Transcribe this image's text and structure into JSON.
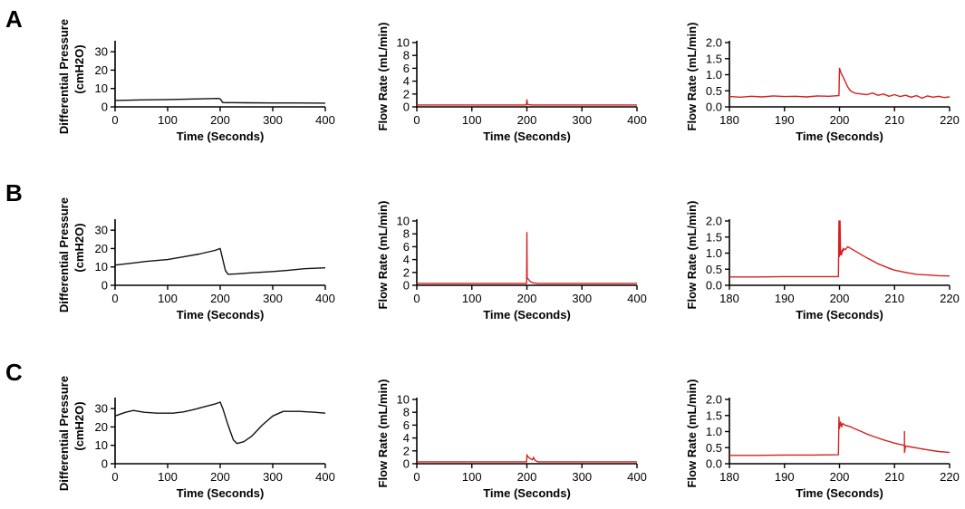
{
  "colors": {
    "pressure": "#111111",
    "flow": "#d42020"
  },
  "row_labels": [
    "A",
    "B",
    "C"
  ],
  "chart_data": [
    {
      "id": "A-pressure",
      "type": "line",
      "row": "A",
      "xlabel": "Time (Seconds)",
      "ylabel": [
        "Differential Pressure",
        "(cmH2O)"
      ],
      "xlim": [
        0,
        400
      ],
      "ylim": [
        0,
        35
      ],
      "xticks": [
        0,
        100,
        200,
        300,
        400
      ],
      "yticks": [
        0,
        10,
        20,
        30
      ],
      "color": "pressure",
      "series": [
        {
          "name": "Differential Pressure",
          "x": [
            0,
            50,
            100,
            150,
            195,
            200,
            205,
            250,
            300,
            350,
            400
          ],
          "y": [
            3.5,
            3.8,
            4.0,
            4.3,
            4.6,
            4.4,
            2.3,
            2.2,
            2.1,
            2.1,
            2.0
          ]
        }
      ]
    },
    {
      "id": "A-flow",
      "type": "line",
      "row": "A",
      "xlabel": "Time (Seconds)",
      "ylabel": [
        "Flow Rate (mL/min)"
      ],
      "xlim": [
        0,
        400
      ],
      "ylim": [
        0,
        10
      ],
      "xticks": [
        0,
        100,
        200,
        300,
        400
      ],
      "yticks": [
        0,
        2,
        4,
        6,
        8,
        10
      ],
      "color": "flow",
      "series": [
        {
          "name": "Flow Rate",
          "x": [
            0,
            100,
            198,
            199,
            200,
            201,
            203,
            210,
            300,
            400
          ],
          "y": [
            0.3,
            0.3,
            0.3,
            0.3,
            1.1,
            0.4,
            0.35,
            0.3,
            0.3,
            0.3
          ]
        }
      ]
    },
    {
      "id": "A-flow-zoom",
      "type": "line",
      "row": "A",
      "xlabel": "Time (Seconds)",
      "ylabel": [
        "Flow Rate (mL/min)"
      ],
      "xlim": [
        180,
        220
      ],
      "ylim": [
        0,
        2.0
      ],
      "xticks": [
        180,
        190,
        200,
        210,
        220
      ],
      "yticks": [
        0.0,
        0.5,
        1.0,
        1.5,
        2.0
      ],
      "color": "flow",
      "series": [
        {
          "name": "Flow Rate",
          "x": [
            180,
            182,
            184,
            186,
            188,
            190,
            192,
            194,
            196,
            198,
            199.9,
            200.0,
            200.3,
            200.6,
            201,
            201.5,
            202,
            202.5,
            203,
            204,
            205,
            206,
            207,
            208,
            209,
            210,
            211,
            212,
            213,
            214,
            215,
            216,
            217,
            218,
            219,
            220
          ],
          "y": [
            0.32,
            0.3,
            0.33,
            0.31,
            0.34,
            0.32,
            0.33,
            0.31,
            0.34,
            0.33,
            0.35,
            1.2,
            1.05,
            0.95,
            0.8,
            0.62,
            0.5,
            0.45,
            0.42,
            0.4,
            0.38,
            0.43,
            0.36,
            0.4,
            0.33,
            0.38,
            0.32,
            0.36,
            0.3,
            0.35,
            0.27,
            0.34,
            0.3,
            0.33,
            0.29,
            0.31
          ]
        }
      ]
    },
    {
      "id": "B-pressure",
      "type": "line",
      "row": "B",
      "xlabel": "Time (Seconds)",
      "ylabel": [
        "Differential Pressure",
        "(cmH2O)"
      ],
      "xlim": [
        0,
        400
      ],
      "ylim": [
        0,
        35
      ],
      "xticks": [
        0,
        100,
        200,
        300,
        400
      ],
      "yticks": [
        0,
        10,
        20,
        30
      ],
      "color": "pressure",
      "series": [
        {
          "name": "Differential Pressure",
          "x": [
            0,
            30,
            60,
            100,
            130,
            160,
            190,
            200,
            205,
            210,
            215,
            230,
            260,
            300,
            330,
            360,
            400
          ],
          "y": [
            11,
            12,
            13,
            14,
            15.5,
            17,
            19,
            20,
            14,
            8,
            6,
            6.2,
            6.8,
            7.5,
            8.2,
            9,
            9.5
          ]
        }
      ]
    },
    {
      "id": "B-flow",
      "type": "line",
      "row": "B",
      "xlabel": "Time (Seconds)",
      "ylabel": [
        "Flow Rate (mL/min)"
      ],
      "xlim": [
        0,
        400
      ],
      "ylim": [
        0,
        10
      ],
      "xticks": [
        0,
        100,
        200,
        300,
        400
      ],
      "yticks": [
        0,
        2,
        4,
        6,
        8,
        10
      ],
      "color": "flow",
      "series": [
        {
          "name": "Flow Rate",
          "x": [
            0,
            100,
            198,
            199.5,
            200,
            200.5,
            201,
            203,
            206,
            210,
            220,
            300,
            400
          ],
          "y": [
            0.3,
            0.3,
            0.3,
            0.3,
            8.2,
            1.2,
            1.1,
            0.9,
            0.6,
            0.4,
            0.3,
            0.3,
            0.3
          ]
        }
      ]
    },
    {
      "id": "B-flow-zoom",
      "type": "line",
      "row": "B",
      "xlabel": "Time (Seconds)",
      "ylabel": [
        "Flow Rate (mL/min)"
      ],
      "xlim": [
        180,
        220
      ],
      "ylim": [
        0,
        2.0
      ],
      "xticks": [
        180,
        190,
        200,
        210,
        220
      ],
      "yticks": [
        0.0,
        0.5,
        1.0,
        1.5,
        2.0
      ],
      "color": "flow",
      "series": [
        {
          "name": "Flow Rate",
          "x": [
            180,
            185,
            190,
            195,
            199.8,
            199.9,
            200.0,
            200.1,
            200.2,
            200.3,
            200.4,
            200.5,
            200.6,
            200.7,
            201,
            201.5,
            202,
            203,
            204,
            205,
            206,
            207,
            208,
            209,
            210,
            212,
            214,
            216,
            218,
            220
          ],
          "y": [
            0.26,
            0.26,
            0.27,
            0.27,
            0.27,
            2.0,
            0.9,
            2.0,
            0.95,
            1.05,
            0.95,
            1.1,
            1.05,
            1.15,
            1.1,
            1.2,
            1.15,
            1.05,
            0.95,
            0.85,
            0.76,
            0.67,
            0.6,
            0.53,
            0.47,
            0.4,
            0.34,
            0.32,
            0.3,
            0.29
          ]
        }
      ]
    },
    {
      "id": "C-pressure",
      "type": "line",
      "row": "C",
      "xlabel": "Time (Seconds)",
      "ylabel": [
        "Differential Pressure",
        "(cmH2O)"
      ],
      "xlim": [
        0,
        400
      ],
      "ylim": [
        0,
        35
      ],
      "xticks": [
        0,
        100,
        200,
        300,
        400
      ],
      "yticks": [
        0,
        10,
        20,
        30
      ],
      "color": "pressure",
      "series": [
        {
          "name": "Differential Pressure",
          "x": [
            0,
            20,
            35,
            55,
            80,
            110,
            130,
            150,
            170,
            190,
            200,
            205,
            215,
            225,
            232,
            245,
            260,
            280,
            300,
            320,
            350,
            380,
            400
          ],
          "y": [
            26,
            28,
            29,
            28,
            27.5,
            27.5,
            28.2,
            29.5,
            31,
            32.5,
            33.5,
            30,
            21,
            13,
            11,
            12,
            15,
            21,
            26,
            28.5,
            28.5,
            28,
            27.5
          ]
        }
      ]
    },
    {
      "id": "C-flow",
      "type": "line",
      "row": "C",
      "xlabel": "Time (Seconds)",
      "ylabel": [
        "Flow Rate (mL/min)"
      ],
      "xlim": [
        0,
        400
      ],
      "ylim": [
        0,
        10
      ],
      "xticks": [
        0,
        100,
        200,
        300,
        400
      ],
      "yticks": [
        0,
        2,
        4,
        6,
        8,
        10
      ],
      "color": "flow",
      "series": [
        {
          "name": "Flow Rate",
          "x": [
            0,
            100,
            198,
            199.5,
            200,
            201,
            203,
            206,
            210,
            212,
            215,
            220,
            300,
            400
          ],
          "y": [
            0.3,
            0.3,
            0.3,
            0.3,
            1.4,
            1.2,
            1.0,
            0.8,
            0.6,
            1.0,
            0.5,
            0.3,
            0.3,
            0.3
          ]
        }
      ]
    },
    {
      "id": "C-flow-zoom",
      "type": "line",
      "row": "C",
      "xlabel": "Time (Seconds)",
      "ylabel": [
        "Flow Rate (mL/min)"
      ],
      "xlim": [
        180,
        220
      ],
      "ylim": [
        0,
        2.0
      ],
      "xticks": [
        180,
        190,
        200,
        210,
        220
      ],
      "yticks": [
        0.0,
        0.5,
        1.0,
        1.5,
        2.0
      ],
      "color": "flow",
      "series": [
        {
          "name": "Flow Rate",
          "x": [
            180,
            185,
            190,
            195,
            199.8,
            199.9,
            200.0,
            200.2,
            200.4,
            200.6,
            201,
            202,
            203,
            204,
            205,
            206,
            207,
            208,
            209,
            210,
            211,
            211.8,
            211.8,
            211.8,
            212,
            213,
            214,
            216,
            218,
            220
          ],
          "y": [
            0.26,
            0.26,
            0.27,
            0.27,
            0.28,
            1.45,
            1.1,
            1.3,
            1.15,
            1.25,
            1.2,
            1.15,
            1.07,
            1.0,
            0.92,
            0.86,
            0.8,
            0.74,
            0.69,
            0.64,
            0.6,
            0.57,
            1.0,
            0.35,
            0.55,
            0.52,
            0.49,
            0.43,
            0.38,
            0.35
          ]
        }
      ]
    }
  ]
}
